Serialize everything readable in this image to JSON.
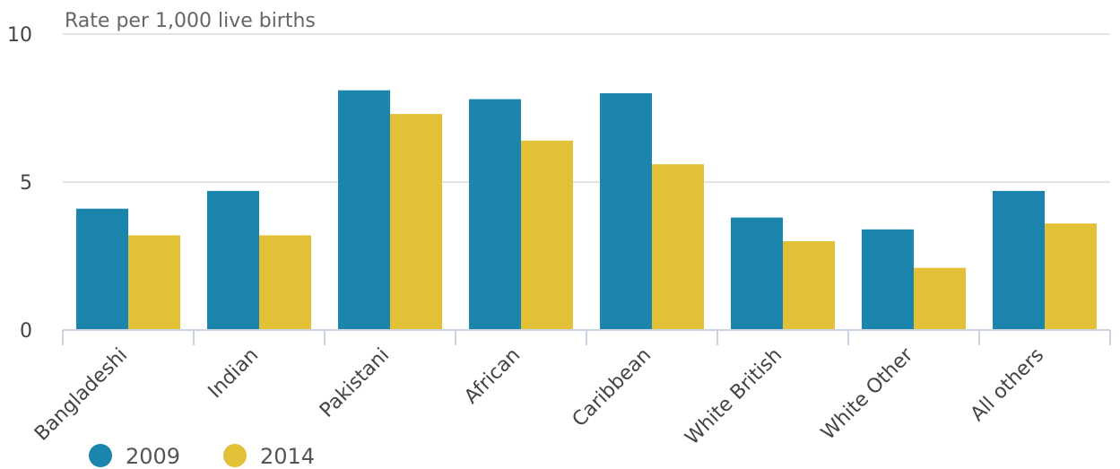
{
  "chart_data": {
    "type": "bar",
    "ylabel": "Rate per 1,000 live births",
    "ylim": [
      0,
      10
    ],
    "yticks": [
      "0",
      "5",
      "10"
    ],
    "grid": true,
    "legend_position": "bottom-left",
    "categories": [
      "Bangladeshi",
      "Indian",
      "Pakistani",
      "African",
      "Caribbean",
      "White British",
      "White Other",
      "All others"
    ],
    "series": [
      {
        "name": "2009",
        "color": "#1b85ad",
        "values": [
          4.1,
          4.7,
          8.1,
          7.8,
          8.0,
          3.8,
          3.4,
          4.7
        ]
      },
      {
        "name": "2014",
        "color": "#e3c136",
        "values": [
          3.2,
          3.2,
          7.3,
          6.4,
          5.6,
          3.0,
          2.1,
          3.6
        ]
      }
    ]
  }
}
